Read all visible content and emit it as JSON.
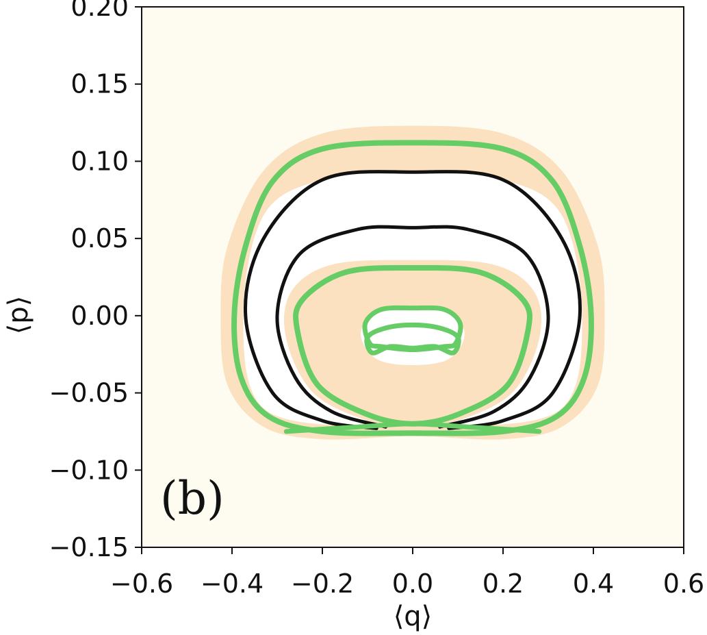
{
  "chart_data": {
    "type": "line",
    "title": "",
    "panel_label": "(b)",
    "xlabel": "⟨q⟩",
    "ylabel": "⟨p⟩",
    "xlim": [
      -0.6,
      0.6
    ],
    "ylim": [
      -0.15,
      0.2
    ],
    "xticks": [
      -0.6,
      -0.4,
      -0.2,
      0.0,
      0.2,
      0.4,
      0.6
    ],
    "yticks": [
      -0.15,
      -0.1,
      -0.05,
      0.0,
      0.05,
      0.1,
      0.15,
      0.2
    ],
    "xtick_labels": [
      "−0.6",
      "−0.4",
      "−0.2",
      "0.0",
      "0.2",
      "0.4",
      "0.6"
    ],
    "ytick_labels": [
      "−0.15",
      "−0.10",
      "−0.05",
      "0.00",
      "0.05",
      "0.10",
      "0.15",
      "0.20"
    ],
    "grid": false,
    "legend": "none",
    "colors": {
      "background": "#fefcf0",
      "region": "#fbe1c0",
      "hole": "#ffffff",
      "green": "#66cc66",
      "black": "#111111"
    },
    "regions": [
      {
        "name": "outer-band",
        "kind": "outer",
        "points": [
          [
            0.0,
            0.123
          ],
          [
            0.2,
            0.118
          ],
          [
            0.33,
            0.094
          ],
          [
            0.41,
            0.045
          ],
          [
            0.425,
            0.0
          ],
          [
            0.41,
            -0.045
          ],
          [
            0.33,
            -0.072
          ],
          [
            0.2,
            -0.08
          ],
          [
            0.0,
            -0.078
          ],
          [
            -0.2,
            -0.08
          ],
          [
            -0.33,
            -0.072
          ],
          [
            -0.41,
            -0.045
          ],
          [
            -0.425,
            0.0
          ],
          [
            -0.41,
            0.045
          ],
          [
            -0.33,
            0.094
          ],
          [
            -0.2,
            0.118
          ]
        ]
      },
      {
        "name": "outer-band-hole",
        "kind": "hole",
        "points": [
          [
            0.0,
            0.093
          ],
          [
            0.2,
            0.088
          ],
          [
            0.33,
            0.065
          ],
          [
            0.375,
            0.0
          ],
          [
            0.33,
            -0.06
          ],
          [
            0.1,
            -0.072
          ],
          [
            0.0,
            -0.07
          ],
          [
            -0.1,
            -0.072
          ],
          [
            -0.33,
            -0.06
          ],
          [
            -0.375,
            0.0
          ],
          [
            -0.33,
            0.065
          ],
          [
            -0.2,
            0.088
          ]
        ]
      },
      {
        "name": "inner-disk",
        "kind": "inner",
        "points": [
          [
            0.0,
            0.036
          ],
          [
            0.18,
            0.033
          ],
          [
            0.27,
            0.015
          ],
          [
            0.28,
            -0.015
          ],
          [
            0.22,
            -0.05
          ],
          [
            0.1,
            -0.068
          ],
          [
            0.0,
            -0.072
          ],
          [
            -0.1,
            -0.068
          ],
          [
            -0.22,
            -0.05
          ],
          [
            -0.28,
            -0.015
          ],
          [
            -0.27,
            0.015
          ],
          [
            -0.18,
            0.033
          ]
        ]
      },
      {
        "name": "inner-disk-hole",
        "kind": "hole",
        "points": [
          [
            0.0,
            0.005
          ],
          [
            0.08,
            0.003
          ],
          [
            0.115,
            -0.012
          ],
          [
            0.08,
            -0.028
          ],
          [
            0.0,
            -0.032
          ],
          [
            -0.08,
            -0.028
          ],
          [
            -0.115,
            -0.012
          ],
          [
            -0.08,
            0.003
          ]
        ]
      }
    ],
    "series": [
      {
        "color": "green",
        "width": 8,
        "closed": true,
        "points": [
          [
            0.0,
            0.112
          ],
          [
            0.2,
            0.108
          ],
          [
            0.31,
            0.087
          ],
          [
            0.37,
            0.045
          ],
          [
            0.395,
            0.0
          ],
          [
            0.38,
            -0.04
          ],
          [
            0.32,
            -0.065
          ],
          [
            0.2,
            -0.075
          ],
          [
            0.0,
            -0.076
          ],
          [
            -0.2,
            -0.075
          ],
          [
            -0.32,
            -0.065
          ],
          [
            -0.38,
            -0.04
          ],
          [
            -0.395,
            0.0
          ],
          [
            -0.37,
            0.045
          ],
          [
            -0.31,
            0.087
          ],
          [
            -0.2,
            0.108
          ]
        ]
      },
      {
        "color": "black",
        "width": 5,
        "closed": false,
        "points": [
          [
            0.08,
            -0.073
          ],
          [
            0.2,
            -0.068
          ],
          [
            0.31,
            -0.05
          ],
          [
            0.37,
            0.0
          ],
          [
            0.33,
            0.05
          ],
          [
            0.2,
            0.088
          ],
          [
            0.0,
            0.093
          ],
          [
            -0.2,
            0.088
          ],
          [
            -0.33,
            0.05
          ],
          [
            -0.37,
            0.0
          ],
          [
            -0.31,
            -0.05
          ],
          [
            -0.2,
            -0.068
          ],
          [
            -0.08,
            -0.073
          ]
        ]
      },
      {
        "color": "black",
        "width": 5,
        "closed": false,
        "points": [
          [
            0.06,
            -0.072
          ],
          [
            0.18,
            -0.062
          ],
          [
            0.26,
            -0.04
          ],
          [
            0.3,
            0.0
          ],
          [
            0.25,
            0.04
          ],
          [
            0.12,
            0.056
          ],
          [
            0.0,
            0.057
          ],
          [
            -0.12,
            0.056
          ],
          [
            -0.25,
            0.04
          ],
          [
            -0.3,
            0.0
          ],
          [
            -0.26,
            -0.04
          ],
          [
            -0.18,
            -0.062
          ],
          [
            -0.06,
            -0.072
          ]
        ]
      },
      {
        "color": "green",
        "width": 8,
        "closed": true,
        "points": [
          [
            0.0,
            0.031
          ],
          [
            0.15,
            0.028
          ],
          [
            0.245,
            0.01
          ],
          [
            0.255,
            -0.01
          ],
          [
            0.21,
            -0.045
          ],
          [
            0.1,
            -0.064
          ],
          [
            0.0,
            -0.07
          ],
          [
            -0.1,
            -0.064
          ],
          [
            -0.21,
            -0.045
          ],
          [
            -0.255,
            -0.01
          ],
          [
            -0.245,
            0.01
          ],
          [
            -0.15,
            0.028
          ]
        ]
      },
      {
        "color": "green",
        "width": 7,
        "closed": true,
        "points": [
          [
            0.0,
            0.005
          ],
          [
            0.07,
            0.004
          ],
          [
            0.105,
            -0.005
          ],
          [
            0.095,
            -0.018
          ],
          [
            0.07,
            -0.02
          ],
          [
            0.0,
            -0.022
          ],
          [
            -0.07,
            -0.02
          ],
          [
            -0.095,
            -0.018
          ],
          [
            -0.105,
            -0.005
          ],
          [
            -0.07,
            0.004
          ]
        ]
      },
      {
        "color": "green",
        "width": 7,
        "closed": true,
        "points": [
          [
            0.0,
            -0.006
          ],
          [
            0.06,
            -0.008
          ],
          [
            0.1,
            -0.014
          ],
          [
            0.09,
            -0.024
          ],
          [
            0.05,
            -0.02
          ],
          [
            0.0,
            -0.021
          ],
          [
            -0.05,
            -0.02
          ],
          [
            -0.09,
            -0.024
          ],
          [
            -0.1,
            -0.014
          ],
          [
            -0.06,
            -0.008
          ]
        ]
      },
      {
        "color": "green",
        "width": 7,
        "closed": false,
        "points": [
          [
            0.28,
            -0.075
          ],
          [
            0.12,
            -0.072
          ],
          [
            0.0,
            -0.07
          ],
          [
            -0.12,
            -0.072
          ],
          [
            -0.28,
            -0.075
          ]
        ]
      }
    ]
  }
}
